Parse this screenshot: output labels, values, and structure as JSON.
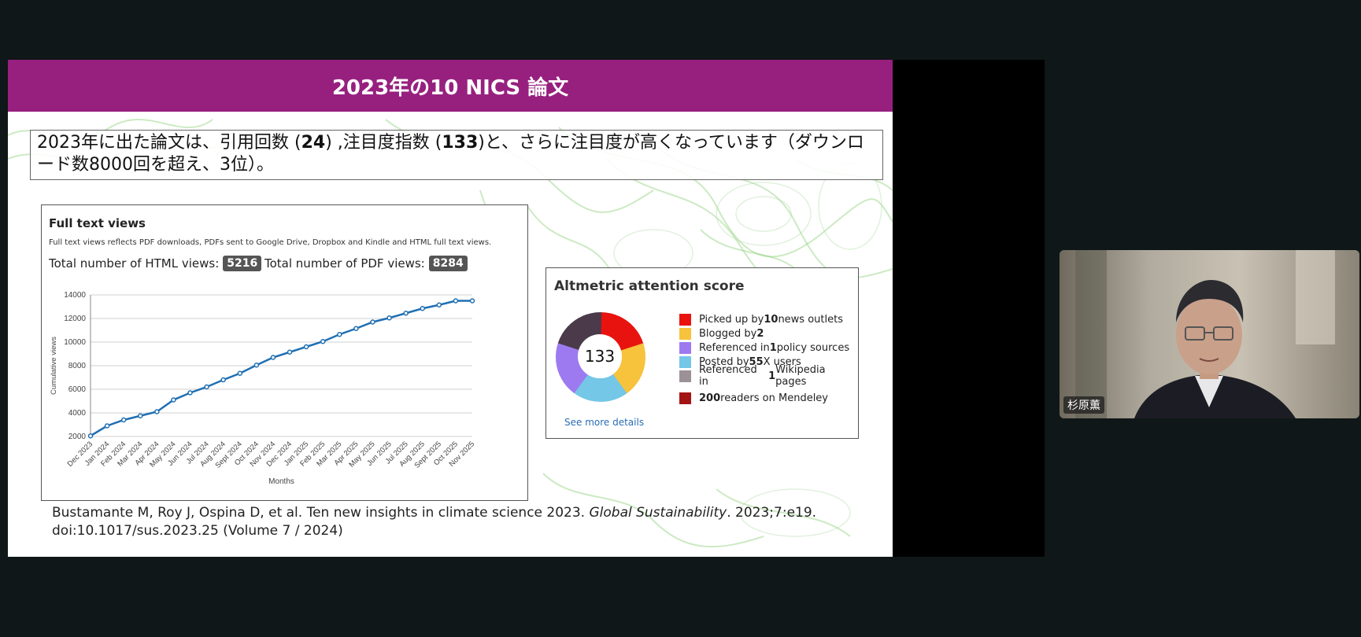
{
  "slide": {
    "title": "2023年の10 NICS 論文",
    "intro_parts": [
      "2023年に出た論文は、引用回数 (",
      "24",
      ") ,注目度指数 (",
      "133",
      ")と、さらに注目度が高くなっています（ダウンロード数8000回を超え、3位）。"
    ]
  },
  "views": {
    "title": "Full text views",
    "description": "Full text views reflects PDF downloads, PDFs sent to Google Drive, Dropbox and Kindle and HTML full text views.",
    "html_label": "Total number of HTML views:",
    "html_value": "5216",
    "pdf_label": "Total number of PDF views:",
    "pdf_value": "8284"
  },
  "chart_data": {
    "type": "line",
    "xlabel": "Months",
    "ylabel": "Cumulative views",
    "ylim": [
      2000,
      14000
    ],
    "yticks": [
      2000,
      4000,
      6000,
      8000,
      10000,
      12000,
      14000
    ],
    "grid": true,
    "x": [
      "Dec 2023",
      "Jan 2024",
      "Feb 2024",
      "Mar 2024",
      "Apr 2024",
      "May 2024",
      "Jun 2024",
      "Jul 2024",
      "Aug 2024",
      "Sept 2024",
      "Oct 2024",
      "Nov 2024",
      "Dec 2024",
      "Jan 2025",
      "Feb 2025",
      "Mar 2025",
      "Apr 2025",
      "May 2025",
      "Jun 2025",
      "Jul 2025",
      "Aug 2025",
      "Sept 2025",
      "Oct 2025",
      "Nov 2025"
    ],
    "series": [
      {
        "values": [
          2050,
          2900,
          3400,
          3750,
          4100,
          5100,
          5700,
          6200,
          6800,
          7350,
          8050,
          8700,
          9150,
          9600,
          10050,
          10650,
          11150,
          11700,
          12050,
          12450,
          12850,
          13150,
          13500,
          13500
        ]
      }
    ],
    "color": "#1f6fb3"
  },
  "altmetric": {
    "title": "Altmetric attention score",
    "score": "133",
    "link": "See more details",
    "legend": [
      {
        "pre": "Picked up by ",
        "num": "10",
        "post": " news outlets",
        "color": "#e8130f"
      },
      {
        "pre": "Blogged by ",
        "num": "2",
        "post": "",
        "color": "#f7c23c"
      },
      {
        "pre": "Referenced in ",
        "num": "1",
        "post": " policy sources",
        "color": "#9d7af0"
      },
      {
        "pre": "Posted by ",
        "num": "55",
        "post": " X users",
        "color": "#74c7e6"
      },
      {
        "pre": "Referenced in ",
        "num": "1",
        "post": " Wikipedia pages",
        "color": "#9b9196"
      }
    ],
    "mendeley": {
      "num": "200",
      "post": " readers on Mendeley",
      "color": "#a51414"
    },
    "donut_colors": [
      "#e8130f",
      "#f7c23c",
      "#74c7e6",
      "#9d7af0",
      "#4a3a4a"
    ]
  },
  "citation": {
    "line1_pre": "Bustamante M, Roy J, Ospina D, et al. Ten new insights in climate science 2023. ",
    "journal": "Global Sustainability",
    "line1_post": ". 2023;7:e19.",
    "line2": "doi:10.1017/sus.2023.25 (Volume 7 / 2024)"
  },
  "video": {
    "participant_name": "杉原薫"
  }
}
